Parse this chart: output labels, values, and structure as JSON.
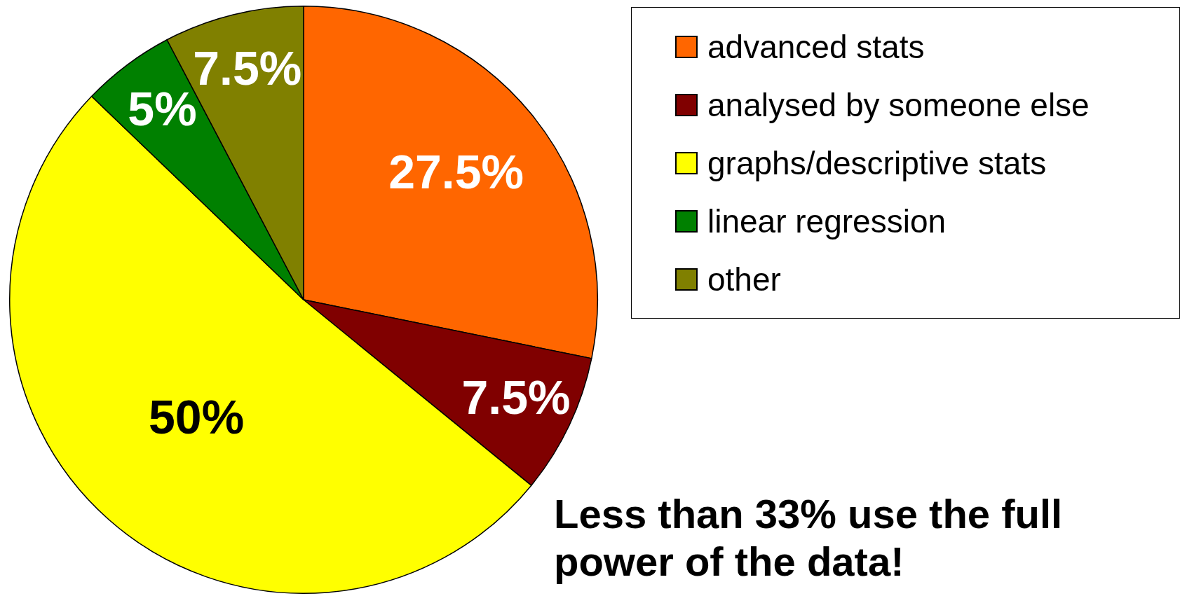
{
  "chart_data": {
    "type": "pie",
    "categories": [
      "advanced stats",
      "analysed by someone else",
      "graphs/descriptive stats",
      "linear regression",
      "other"
    ],
    "values": [
      27.5,
      7.5,
      50,
      5,
      7.5
    ],
    "colors": [
      "#ff6600",
      "#800000",
      "#ffff00",
      "#008000",
      "#808000"
    ],
    "value_labels": [
      "27.5%",
      "7.5%",
      "50%",
      "5%",
      "7.5%"
    ],
    "legend": "top right",
    "annotations": [
      "Less than 33% use the full power of the data!"
    ]
  }
}
